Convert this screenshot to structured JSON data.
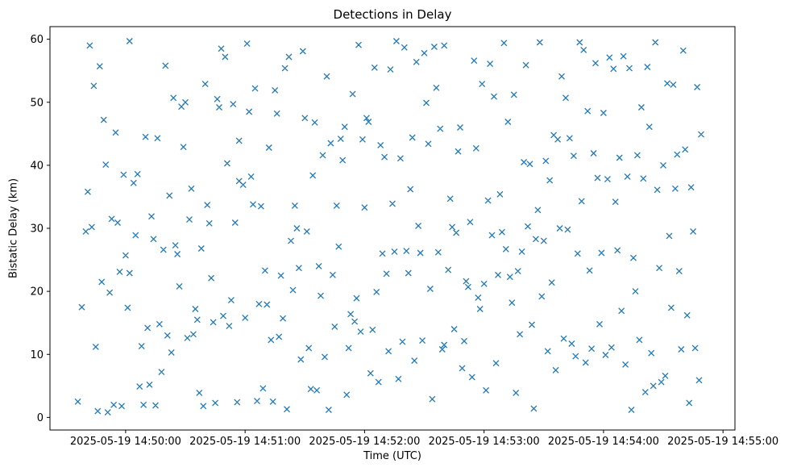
{
  "chart_data": {
    "type": "scatter",
    "title": "Detections in Delay",
    "xlabel": "Time (UTC)",
    "ylabel": "Bistatic Delay (km)",
    "marker": "x",
    "marker_color": "#1f77b4",
    "marker_size": 7,
    "grid": false,
    "legend": "none",
    "x_unit": "seconds after 2025-05-19 14:49:00 UTC",
    "xlim": [
      22,
      366
    ],
    "ylim": [
      -2,
      62
    ],
    "x_ticks": [
      {
        "value": 60,
        "label": "2025-05-19 14:50:00"
      },
      {
        "value": 120,
        "label": "2025-05-19 14:51:00"
      },
      {
        "value": 180,
        "label": "2025-05-19 14:52:00"
      },
      {
        "value": 240,
        "label": "2025-05-19 14:53:00"
      },
      {
        "value": 300,
        "label": "2025-05-19 14:54:00"
      },
      {
        "value": 360,
        "label": "2025-05-19 14:55:00"
      }
    ],
    "y_ticks": [
      {
        "value": 0,
        "label": "0"
      },
      {
        "value": 10,
        "label": "10"
      },
      {
        "value": 20,
        "label": "20"
      },
      {
        "value": 30,
        "label": "30"
      },
      {
        "value": 40,
        "label": "40"
      },
      {
        "value": 50,
        "label": "50"
      },
      {
        "value": 60,
        "label": "60"
      }
    ],
    "points": [
      [
        36,
        2.5
      ],
      [
        38,
        17.5
      ],
      [
        40,
        29.5
      ],
      [
        41,
        35.8
      ],
      [
        42,
        59.0
      ],
      [
        43,
        30.2
      ],
      [
        44,
        52.6
      ],
      [
        45,
        11.2
      ],
      [
        46,
        1.0
      ],
      [
        47,
        55.7
      ],
      [
        48,
        21.5
      ],
      [
        49,
        47.2
      ],
      [
        50,
        40.1
      ],
      [
        51,
        0.8
      ],
      [
        52,
        19.8
      ],
      [
        53,
        31.5
      ],
      [
        54,
        2.0
      ],
      [
        55,
        45.2
      ],
      [
        56,
        30.9
      ],
      [
        57,
        23.1
      ],
      [
        58,
        1.8
      ],
      [
        59,
        38.5
      ],
      [
        60,
        25.7
      ],
      [
        61,
        17.4
      ],
      [
        62,
        59.7
      ],
      [
        62,
        22.9
      ],
      [
        64,
        37.2
      ],
      [
        65,
        28.9
      ],
      [
        66,
        38.6
      ],
      [
        67,
        4.9
      ],
      [
        68,
        11.3
      ],
      [
        69,
        2.0
      ],
      [
        70,
        44.5
      ],
      [
        71,
        14.2
      ],
      [
        72,
        5.2
      ],
      [
        73,
        31.9
      ],
      [
        74,
        28.3
      ],
      [
        75,
        1.9
      ],
      [
        76,
        44.3
      ],
      [
        77,
        14.8
      ],
      [
        78,
        7.2
      ],
      [
        79,
        26.6
      ],
      [
        80,
        55.8
      ],
      [
        81,
        13.0
      ],
      [
        82,
        35.2
      ],
      [
        83,
        10.3
      ],
      [
        84,
        50.7
      ],
      [
        85,
        27.3
      ],
      [
        86,
        25.9
      ],
      [
        87,
        20.8
      ],
      [
        88,
        49.3
      ],
      [
        89,
        42.9
      ],
      [
        90,
        50.0
      ],
      [
        91,
        12.6
      ],
      [
        92,
        31.4
      ],
      [
        93,
        36.3
      ],
      [
        94,
        13.2
      ],
      [
        95,
        17.2
      ],
      [
        96,
        15.5
      ],
      [
        97,
        3.9
      ],
      [
        98,
        26.8
      ],
      [
        99,
        1.8
      ],
      [
        100,
        52.9
      ],
      [
        101,
        33.7
      ],
      [
        102,
        30.8
      ],
      [
        103,
        22.1
      ],
      [
        104,
        15.1
      ],
      [
        105,
        2.3
      ],
      [
        106,
        50.5
      ],
      [
        107,
        49.2
      ],
      [
        108,
        58.5
      ],
      [
        109,
        16.1
      ],
      [
        110,
        57.2
      ],
      [
        111,
        40.3
      ],
      [
        112,
        14.5
      ],
      [
        113,
        18.6
      ],
      [
        114,
        49.7
      ],
      [
        115,
        30.9
      ],
      [
        116,
        2.4
      ],
      [
        117,
        43.9
      ],
      [
        117,
        37.5
      ],
      [
        119,
        36.9
      ],
      [
        120,
        15.8
      ],
      [
        121,
        59.3
      ],
      [
        122,
        48.5
      ],
      [
        123,
        38.2
      ],
      [
        124,
        33.8
      ],
      [
        125,
        52.2
      ],
      [
        126,
        2.6
      ],
      [
        127,
        18.0
      ],
      [
        128,
        33.5
      ],
      [
        129,
        4.6
      ],
      [
        130,
        23.3
      ],
      [
        131,
        17.9
      ],
      [
        132,
        42.8
      ],
      [
        133,
        12.3
      ],
      [
        134,
        2.5
      ],
      [
        135,
        51.9
      ],
      [
        136,
        48.2
      ],
      [
        137,
        12.8
      ],
      [
        138,
        22.5
      ],
      [
        139,
        15.7
      ],
      [
        140,
        55.4
      ],
      [
        141,
        1.3
      ],
      [
        142,
        57.2
      ],
      [
        143,
        28.0
      ],
      [
        144,
        20.2
      ],
      [
        145,
        33.6
      ],
      [
        146,
        30.0
      ],
      [
        147,
        23.7
      ],
      [
        148,
        9.2
      ],
      [
        149,
        58.1
      ],
      [
        150,
        47.5
      ],
      [
        151,
        29.5
      ],
      [
        152,
        11.0
      ],
      [
        153,
        4.5
      ],
      [
        154,
        38.4
      ],
      [
        155,
        46.8
      ],
      [
        156,
        4.3
      ],
      [
        157,
        24.0
      ],
      [
        158,
        19.3
      ],
      [
        159,
        41.6
      ],
      [
        160,
        9.6
      ],
      [
        161,
        54.1
      ],
      [
        162,
        1.2
      ],
      [
        163,
        43.5
      ],
      [
        164,
        22.6
      ],
      [
        165,
        14.4
      ],
      [
        166,
        33.6
      ],
      [
        167,
        27.1
      ],
      [
        168,
        44.2
      ],
      [
        169,
        40.8
      ],
      [
        170,
        46.1
      ],
      [
        171,
        3.6
      ],
      [
        172,
        11.0
      ],
      [
        173,
        16.4
      ],
      [
        174,
        51.3
      ],
      [
        175,
        15.2
      ],
      [
        176,
        18.9
      ],
      [
        177,
        59.1
      ],
      [
        178,
        13.6
      ],
      [
        179,
        44.1
      ],
      [
        180,
        33.3
      ],
      [
        181,
        47.5
      ],
      [
        182,
        46.9
      ],
      [
        183,
        7.0
      ],
      [
        184,
        13.9
      ],
      [
        185,
        55.5
      ],
      [
        186,
        19.9
      ],
      [
        187,
        5.6
      ],
      [
        188,
        43.2
      ],
      [
        189,
        26.0
      ],
      [
        190,
        41.3
      ],
      [
        191,
        22.8
      ],
      [
        192,
        10.5
      ],
      [
        193,
        55.2
      ],
      [
        194,
        33.9
      ],
      [
        195,
        26.3
      ],
      [
        196,
        59.7
      ],
      [
        197,
        6.1
      ],
      [
        198,
        41.1
      ],
      [
        199,
        12.0
      ],
      [
        200,
        58.7
      ],
      [
        201,
        26.4
      ],
      [
        202,
        22.9
      ],
      [
        203,
        36.2
      ],
      [
        204,
        44.4
      ],
      [
        205,
        9.0
      ],
      [
        206,
        56.4
      ],
      [
        207,
        30.4
      ],
      [
        208,
        26.1
      ],
      [
        209,
        12.2
      ],
      [
        210,
        57.8
      ],
      [
        211,
        49.9
      ],
      [
        212,
        43.4
      ],
      [
        213,
        20.4
      ],
      [
        214,
        2.9
      ],
      [
        215,
        58.8
      ],
      [
        216,
        52.3
      ],
      [
        217,
        26.2
      ],
      [
        218,
        45.8
      ],
      [
        219,
        10.8
      ],
      [
        220,
        59.0
      ],
      [
        220,
        11.5
      ],
      [
        222,
        23.4
      ],
      [
        223,
        34.7
      ],
      [
        224,
        30.2
      ],
      [
        225,
        14.0
      ],
      [
        226,
        29.3
      ],
      [
        227,
        42.2
      ],
      [
        228,
        46.0
      ],
      [
        229,
        7.8
      ],
      [
        230,
        12.1
      ],
      [
        231,
        21.6
      ],
      [
        232,
        20.7
      ],
      [
        233,
        31.0
      ],
      [
        234,
        6.4
      ],
      [
        235,
        56.6
      ],
      [
        236,
        42.7
      ],
      [
        237,
        19.0
      ],
      [
        238,
        17.2
      ],
      [
        239,
        52.9
      ],
      [
        240,
        21.2
      ],
      [
        241,
        4.3
      ],
      [
        242,
        34.4
      ],
      [
        243,
        56.1
      ],
      [
        244,
        28.9
      ],
      [
        245,
        50.9
      ],
      [
        246,
        8.6
      ],
      [
        247,
        22.6
      ],
      [
        248,
        35.4
      ],
      [
        249,
        29.4
      ],
      [
        250,
        59.4
      ],
      [
        251,
        26.7
      ],
      [
        252,
        46.9
      ],
      [
        253,
        22.3
      ],
      [
        254,
        18.2
      ],
      [
        255,
        51.2
      ],
      [
        256,
        3.9
      ],
      [
        257,
        23.2
      ],
      [
        258,
        13.2
      ],
      [
        259,
        26.3
      ],
      [
        260,
        40.5
      ],
      [
        261,
        55.9
      ],
      [
        262,
        30.3
      ],
      [
        263,
        40.2
      ],
      [
        264,
        14.7
      ],
      [
        265,
        1.4
      ],
      [
        266,
        28.3
      ],
      [
        267,
        32.9
      ],
      [
        268,
        59.5
      ],
      [
        269,
        19.2
      ],
      [
        270,
        28.0
      ],
      [
        271,
        40.7
      ],
      [
        272,
        10.5
      ],
      [
        273,
        37.6
      ],
      [
        274,
        21.4
      ],
      [
        275,
        44.8
      ],
      [
        276,
        7.5
      ],
      [
        277,
        44.1
      ],
      [
        278,
        30.0
      ],
      [
        279,
        54.1
      ],
      [
        280,
        12.5
      ],
      [
        281,
        50.7
      ],
      [
        282,
        29.8
      ],
      [
        283,
        44.3
      ],
      [
        284,
        11.7
      ],
      [
        285,
        41.5
      ],
      [
        286,
        9.7
      ],
      [
        287,
        26.0
      ],
      [
        288,
        59.5
      ],
      [
        289,
        34.3
      ],
      [
        290,
        58.3
      ],
      [
        291,
        8.7
      ],
      [
        292,
        48.6
      ],
      [
        293,
        23.3
      ],
      [
        294,
        10.9
      ],
      [
        295,
        41.9
      ],
      [
        296,
        56.2
      ],
      [
        297,
        38.0
      ],
      [
        298,
        14.8
      ],
      [
        299,
        26.1
      ],
      [
        300,
        48.3
      ],
      [
        301,
        9.9
      ],
      [
        302,
        37.8
      ],
      [
        303,
        57.1
      ],
      [
        304,
        11.1
      ],
      [
        305,
        55.3
      ],
      [
        306,
        34.2
      ],
      [
        307,
        26.5
      ],
      [
        308,
        41.2
      ],
      [
        309,
        16.9
      ],
      [
        310,
        57.3
      ],
      [
        311,
        8.4
      ],
      [
        312,
        38.2
      ],
      [
        313,
        55.4
      ],
      [
        314,
        1.2
      ],
      [
        315,
        25.3
      ],
      [
        316,
        20.0
      ],
      [
        317,
        41.6
      ],
      [
        318,
        12.3
      ],
      [
        319,
        49.2
      ],
      [
        320,
        37.9
      ],
      [
        321,
        4.0
      ],
      [
        322,
        55.6
      ],
      [
        323,
        46.1
      ],
      [
        324,
        10.2
      ],
      [
        325,
        5.0
      ],
      [
        326,
        59.5
      ],
      [
        327,
        36.1
      ],
      [
        328,
        23.7
      ],
      [
        329,
        5.6
      ],
      [
        330,
        40.0
      ],
      [
        331,
        6.6
      ],
      [
        332,
        53.0
      ],
      [
        333,
        28.8
      ],
      [
        334,
        17.4
      ],
      [
        335,
        52.8
      ],
      [
        336,
        36.3
      ],
      [
        337,
        41.7
      ],
      [
        338,
        23.2
      ],
      [
        339,
        10.8
      ],
      [
        340,
        58.2
      ],
      [
        341,
        42.5
      ],
      [
        342,
        16.2
      ],
      [
        343,
        2.3
      ],
      [
        344,
        36.5
      ],
      [
        345,
        29.5
      ],
      [
        346,
        11.0
      ],
      [
        347,
        52.4
      ],
      [
        348,
        5.9
      ],
      [
        349,
        44.9
      ]
    ]
  }
}
